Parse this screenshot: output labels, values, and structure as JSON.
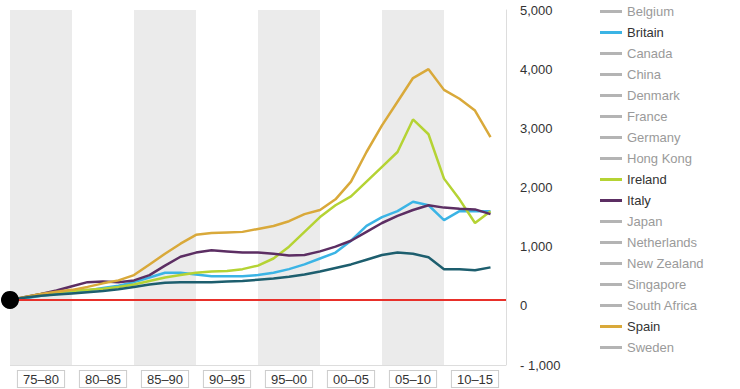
{
  "chart_data": {
    "type": "line",
    "categories": [
      null,
      null,
      "75–80",
      null,
      null,
      null,
      "80–85",
      null,
      null,
      null,
      "85–90",
      null,
      null,
      null,
      "90–95",
      null,
      null,
      null,
      "95–00",
      null,
      null,
      null,
      "00–05",
      null,
      null,
      null,
      "05–10",
      null,
      null,
      null,
      "10–15",
      null,
      null
    ],
    "ylim": [
      -1000,
      5000
    ],
    "yticks": [
      {
        "value": -1000,
        "label": "- 1,000"
      },
      0,
      {
        "value": 1000,
        "label": "1,000"
      },
      {
        "value": 2000,
        "label": "2,000"
      },
      {
        "value": 3000,
        "label": "3,000"
      },
      {
        "value": 4000,
        "label": "4,000"
      },
      {
        "value": 5000,
        "label": "5,000"
      }
    ],
    "grid": true,
    "legend": "right",
    "reference_line": {
      "value": 100,
      "color": "#e8302a",
      "marker": "circle"
    },
    "series": [
      {
        "name": "Belgium",
        "color": "#b4b4b4",
        "values": [
          null,
          null,
          null,
          null,
          null,
          null,
          null,
          null,
          null,
          null,
          null,
          null,
          null,
          null,
          null,
          null,
          null,
          null,
          null,
          null,
          null,
          null,
          null,
          null,
          null,
          null,
          null,
          null,
          null,
          null,
          null,
          null,
          null
        ]
      },
      {
        "name": "Britain",
        "color": "#3bb4e5",
        "values": [
          100,
          130,
          170,
          200,
          230,
          260,
          300,
          340,
          400,
          480,
          560,
          560,
          530,
          500,
          500,
          500,
          520,
          560,
          620,
          700,
          800,
          900,
          1100,
          1350,
          1500,
          1600,
          1760,
          1700,
          1450,
          1600,
          1600,
          1600,
          null
        ]
      },
      {
        "name": "Canada",
        "color": "#b4b4b4",
        "values": [
          null,
          null,
          null,
          null,
          null,
          null,
          null,
          null,
          null,
          null,
          null,
          null,
          null,
          null,
          null,
          null,
          null,
          null,
          null,
          null,
          null,
          null,
          null,
          null,
          null,
          null,
          null,
          null,
          null,
          null,
          null,
          null,
          null
        ]
      },
      {
        "name": "China",
        "color": "#b4b4b4",
        "values": [
          null,
          null,
          null,
          null,
          null,
          null,
          null,
          null,
          null,
          null,
          null,
          null,
          null,
          null,
          null,
          null,
          null,
          null,
          null,
          null,
          null,
          null,
          null,
          null,
          null,
          null,
          null,
          null,
          null,
          null,
          null,
          null,
          null
        ]
      },
      {
        "name": "Denmark",
        "color": "#b4b4b4",
        "values": [
          null,
          null,
          null,
          null,
          null,
          null,
          null,
          null,
          null,
          null,
          null,
          null,
          null,
          null,
          null,
          null,
          null,
          null,
          null,
          null,
          null,
          null,
          null,
          null,
          null,
          null,
          null,
          null,
          null,
          null,
          null,
          null,
          null
        ]
      },
      {
        "name": "France",
        "color": "#b4b4b4",
        "values": [
          null,
          null,
          null,
          null,
          null,
          null,
          null,
          null,
          null,
          null,
          null,
          null,
          null,
          null,
          null,
          null,
          null,
          null,
          null,
          null,
          null,
          null,
          null,
          null,
          null,
          null,
          null,
          null,
          null,
          null,
          null,
          null,
          null
        ]
      },
      {
        "name": "Germany",
        "color": "#b4b4b4",
        "values": [
          null,
          null,
          null,
          null,
          null,
          null,
          null,
          null,
          null,
          null,
          null,
          null,
          null,
          null,
          null,
          null,
          null,
          null,
          null,
          null,
          null,
          null,
          null,
          null,
          null,
          null,
          null,
          null,
          null,
          null,
          null,
          null,
          null
        ]
      },
      {
        "name": "Hong Kong",
        "color": "#b4b4b4",
        "values": [
          null,
          null,
          null,
          null,
          null,
          null,
          null,
          null,
          null,
          null,
          null,
          null,
          null,
          null,
          null,
          null,
          null,
          null,
          null,
          null,
          null,
          null,
          null,
          null,
          null,
          null,
          null,
          null,
          null,
          null,
          null,
          null,
          null
        ]
      },
      {
        "name": "Ireland",
        "color": "#b5d334",
        "values": [
          100,
          150,
          200,
          230,
          250,
          270,
          290,
          320,
          360,
          420,
          480,
          520,
          560,
          580,
          590,
          620,
          680,
          800,
          1000,
          1250,
          1500,
          1700,
          1850,
          2100,
          2350,
          2600,
          3150,
          2900,
          2150,
          1800,
          1400,
          1600,
          null
        ]
      },
      {
        "name": "Italy",
        "color": "#5c2e63",
        "values": [
          100,
          150,
          200,
          260,
          330,
          400,
          410,
          400,
          430,
          520,
          680,
          830,
          900,
          940,
          920,
          900,
          900,
          880,
          850,
          860,
          920,
          1000,
          1100,
          1250,
          1400,
          1520,
          1620,
          1700,
          1660,
          1640,
          1630,
          1550,
          null
        ]
      },
      {
        "name": "Japan",
        "color": "#b4b4b4",
        "values": [
          null,
          null,
          null,
          null,
          null,
          null,
          null,
          null,
          null,
          null,
          null,
          null,
          null,
          null,
          null,
          null,
          null,
          null,
          null,
          null,
          null,
          null,
          null,
          null,
          null,
          null,
          null,
          null,
          null,
          null,
          null,
          null,
          null
        ]
      },
      {
        "name": "Netherlands",
        "color": "#b4b4b4",
        "values": [
          null,
          null,
          null,
          null,
          null,
          null,
          null,
          null,
          null,
          null,
          null,
          null,
          null,
          null,
          null,
          null,
          null,
          null,
          null,
          null,
          null,
          null,
          null,
          null,
          null,
          null,
          null,
          null,
          null,
          null,
          null,
          null,
          null
        ]
      },
      {
        "name": "New Zealand",
        "color": "#b4b4b4",
        "values": [
          null,
          null,
          null,
          null,
          null,
          null,
          null,
          null,
          null,
          null,
          null,
          null,
          null,
          null,
          null,
          null,
          null,
          null,
          null,
          null,
          null,
          null,
          null,
          null,
          null,
          null,
          null,
          null,
          null,
          null,
          null,
          null,
          null
        ]
      },
      {
        "name": "Singapore",
        "color": "#b4b4b4",
        "values": [
          null,
          null,
          null,
          null,
          null,
          null,
          null,
          null,
          null,
          null,
          null,
          null,
          null,
          null,
          null,
          null,
          null,
          null,
          null,
          null,
          null,
          null,
          null,
          null,
          null,
          null,
          null,
          null,
          null,
          null,
          null,
          null,
          null
        ]
      },
      {
        "name": "South Africa",
        "color": "#b4b4b4",
        "values": [
          null,
          null,
          null,
          null,
          null,
          null,
          null,
          null,
          null,
          null,
          null,
          null,
          null,
          null,
          null,
          null,
          null,
          null,
          null,
          null,
          null,
          null,
          null,
          null,
          null,
          null,
          null,
          null,
          null,
          null,
          null,
          null,
          null
        ]
      },
      {
        "name": "Spain",
        "color": "#d9a93a",
        "values": [
          100,
          150,
          200,
          240,
          270,
          320,
          380,
          430,
          520,
          700,
          880,
          1050,
          1200,
          1230,
          1240,
          1250,
          1300,
          1350,
          1430,
          1550,
          1620,
          1800,
          2100,
          2600,
          3050,
          3450,
          3850,
          4000,
          3650,
          3500,
          3300,
          2850,
          null
        ]
      },
      {
        "name": "Sweden",
        "color": "#b4b4b4",
        "values": [
          null,
          null,
          null,
          null,
          null,
          null,
          null,
          null,
          null,
          null,
          null,
          null,
          null,
          null,
          null,
          null,
          null,
          null,
          null,
          null,
          null,
          null,
          null,
          null,
          null,
          null,
          null,
          null,
          null,
          null,
          null,
          null,
          null
        ]
      },
      {
        "color": "#1d5e6e",
        "values": [
          100,
          140,
          170,
          190,
          210,
          230,
          250,
          280,
          320,
          360,
          390,
          400,
          400,
          400,
          410,
          420,
          440,
          460,
          490,
          530,
          580,
          640,
          700,
          780,
          860,
          900,
          880,
          820,
          620,
          620,
          600,
          650,
          null
        ]
      }
    ]
  }
}
